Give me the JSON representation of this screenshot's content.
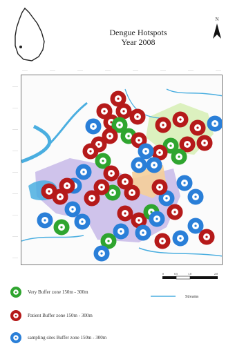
{
  "title": {
    "line1": "Dengue Hotspots",
    "line2": "Year 2008"
  },
  "north_arrow": {
    "label": "N",
    "icon": "north-arrow-icon"
  },
  "axis_ticks": {
    "top": [
      "——",
      "——",
      "——",
      "——",
      "——",
      "——",
      "——",
      "——"
    ],
    "left": [
      "——",
      "——",
      "——",
      "——",
      "——",
      "——",
      "——",
      "——",
      "——"
    ]
  },
  "legend": [
    {
      "label": "Very Buffer zone 150m - 300m",
      "color": "#2fa52f",
      "icon": "green-buffer-icon"
    },
    {
      "label": "Patient Buffer zone 150m - 300m",
      "color": "#b51a1a",
      "icon": "red-buffer-icon"
    },
    {
      "label": "sampling sites  Buffer zone 150m - 300m",
      "color": "#2a7fd8",
      "icon": "blue-buffer-icon"
    }
  ],
  "streams_label": "Streams",
  "scale_labels": [
    "0",
    "0.5",
    "1.0",
    "",
    "2.0"
  ],
  "colors": {
    "red": "#b51a1a",
    "green": "#2fa52f",
    "blue": "#2a7fd8",
    "water": "#4aaee0",
    "zone_purple": "#c7b8e8",
    "zone_green": "#d8f0b8",
    "zone_orange": "#f5cf9a"
  }
}
